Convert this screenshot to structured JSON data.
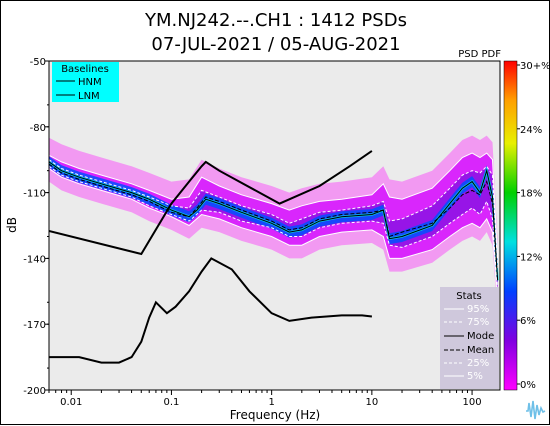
{
  "chart_data": {
    "type": "heatmap",
    "title_line1": "YM.NJ242.--.CH1 : 1412 PSDs",
    "title_line2": "07-JUL-2021 / 05-AUG-2021",
    "xlabel": "Frequency (Hz)",
    "ylabel": "dB",
    "x_scale": "log",
    "xlim": [
      0.006,
      190
    ],
    "ylim": [
      -200,
      -50
    ],
    "x_ticks": [
      0.01,
      0.1,
      1,
      10,
      100
    ],
    "x_tick_labels": [
      "0.01",
      "0.1",
      "1",
      "10",
      "100"
    ],
    "y_ticks": [
      -50,
      -80,
      -110,
      -140,
      -170,
      -200
    ],
    "y_tick_labels": [
      "-50",
      "-80",
      "-110",
      "-140",
      "-170",
      "-200"
    ],
    "colorbar": {
      "title": "PSD PDF",
      "range": [
        0,
        30
      ],
      "tick_labels": [
        "30+%",
        "24%",
        "18%",
        "12%",
        "6%",
        "0%"
      ],
      "colors": [
        "#ff0000",
        "#ffa000",
        "#e8f000",
        "#00d000",
        "#00e0e0",
        "#0040ff",
        "#8000e0",
        "#ff00ff"
      ]
    },
    "baselines": {
      "title": "Baselines",
      "entries": [
        "HNM",
        "LNM"
      ],
      "hnm": {
        "name": "HNM",
        "x": [
          0.006,
          0.05,
          0.1,
          0.15,
          0.2,
          0.22,
          0.3,
          1.2,
          3,
          6,
          10
        ],
        "y": [
          -127.5,
          -138,
          -115,
          -105,
          -98,
          -96,
          -100,
          -115,
          -107,
          -98,
          -91
        ]
      },
      "lnm": {
        "name": "LNM",
        "x": [
          0.006,
          0.012,
          0.02,
          0.03,
          0.04,
          0.05,
          0.06,
          0.07,
          0.09,
          0.11,
          0.15,
          0.2,
          0.25,
          0.4,
          0.6,
          1.0,
          1.5,
          2.5,
          5,
          8,
          10
        ],
        "y": [
          -185,
          -185,
          -187.5,
          -187.5,
          -185,
          -178,
          -167,
          -160,
          -165,
          -162,
          -155,
          -146,
          -140,
          -145,
          -155,
          -165,
          -168.5,
          -167,
          -166,
          -166,
          -166.5
        ]
      }
    },
    "stats": {
      "title": "Stats",
      "entries": [
        "95%",
        "75%",
        "Mode",
        "Mean",
        "25%",
        "5%"
      ],
      "mode": {
        "name": "Mode",
        "x": [
          0.006,
          0.008,
          0.012,
          0.02,
          0.04,
          0.06,
          0.1,
          0.15,
          0.18,
          0.22,
          0.3,
          0.5,
          1,
          1.5,
          2,
          3,
          5,
          10,
          13,
          15,
          20,
          40,
          60,
          80,
          100,
          120,
          140,
          160,
          180
        ],
        "y": [
          -96,
          -100,
          -103,
          -106,
          -110,
          -113,
          -118,
          -121,
          -118,
          -113,
          -115,
          -119,
          -124,
          -128,
          -127,
          -123,
          -121,
          -120,
          -118,
          -131,
          -130,
          -125,
          -115,
          -108,
          -105,
          -110,
          -100,
          -112,
          -150
        ]
      },
      "mean": {
        "name": "Mean",
        "x": [
          0.006,
          0.008,
          0.012,
          0.02,
          0.04,
          0.06,
          0.1,
          0.15,
          0.18,
          0.22,
          0.3,
          0.5,
          1,
          1.5,
          2,
          3,
          5,
          10,
          13,
          15,
          20,
          40,
          60,
          80,
          100,
          120,
          140,
          160,
          180
        ],
        "y": [
          -97,
          -101,
          -104,
          -107,
          -111,
          -114,
          -119,
          -121,
          -117,
          -112,
          -114,
          -118,
          -123,
          -127,
          -126,
          -122,
          -120,
          -119,
          -118,
          -130,
          -128,
          -124,
          -117,
          -111,
          -109,
          -111,
          -105,
          -115,
          -150
        ]
      },
      "p95": {
        "name": "95%",
        "x": [
          0.006,
          0.008,
          0.012,
          0.02,
          0.04,
          0.06,
          0.1,
          0.15,
          0.2,
          0.3,
          0.5,
          1,
          1.5,
          2,
          3,
          5,
          10,
          13,
          15,
          20,
          40,
          60,
          80,
          100,
          120,
          140,
          160,
          180
        ],
        "y": [
          -93,
          -96,
          -99,
          -102,
          -106,
          -109,
          -113,
          -112,
          -103,
          -107,
          -111,
          -115,
          -118,
          -116,
          -114,
          -113,
          -111,
          -106,
          -112,
          -113,
          -108,
          -100,
          -94,
          -92,
          -94,
          -92,
          -95,
          -140
        ]
      },
      "p75": {
        "name": "75%",
        "x": [
          0.006,
          0.008,
          0.012,
          0.02,
          0.04,
          0.06,
          0.1,
          0.15,
          0.2,
          0.3,
          0.5,
          1,
          1.5,
          2,
          3,
          5,
          10,
          13,
          15,
          20,
          40,
          60,
          80,
          100,
          120,
          140,
          160,
          180
        ],
        "y": [
          -95,
          -99,
          -102,
          -105,
          -109,
          -112,
          -116,
          -117,
          -109,
          -112,
          -116,
          -120,
          -124,
          -122,
          -119,
          -118,
          -116,
          -114,
          -123,
          -122,
          -116,
          -108,
          -102,
          -100,
          -101,
          -98,
          -102,
          -145
        ]
      },
      "p25": {
        "name": "25%",
        "x": [
          0.006,
          0.008,
          0.012,
          0.02,
          0.04,
          0.06,
          0.1,
          0.15,
          0.2,
          0.3,
          0.5,
          1,
          1.5,
          2,
          3,
          5,
          10,
          13,
          15,
          20,
          40,
          60,
          80,
          100,
          120,
          140,
          160,
          180
        ],
        "y": [
          -98,
          -102,
          -105,
          -108,
          -112,
          -116,
          -120,
          -123,
          -118,
          -119,
          -123,
          -126,
          -130,
          -130,
          -126,
          -124,
          -123,
          -124,
          -134,
          -135,
          -130,
          -124,
          -120,
          -117,
          -120,
          -114,
          -122,
          -155
        ]
      },
      "p5": {
        "name": "5%",
        "x": [
          0.006,
          0.008,
          0.012,
          0.02,
          0.04,
          0.06,
          0.1,
          0.15,
          0.2,
          0.3,
          0.5,
          1,
          1.5,
          2,
          3,
          5,
          10,
          13,
          15,
          20,
          40,
          60,
          80,
          100,
          120,
          140,
          160,
          180
        ],
        "y": [
          -99,
          -103,
          -106,
          -109,
          -113,
          -117,
          -121,
          -125,
          -120,
          -122,
          -126,
          -130,
          -134,
          -134,
          -130,
          -128,
          -127,
          -130,
          -140,
          -140,
          -136,
          -130,
          -126,
          -124,
          -126,
          -122,
          -128,
          -160
        ]
      }
    }
  },
  "logo": {
    "icon": "waveform-logo-icon"
  }
}
